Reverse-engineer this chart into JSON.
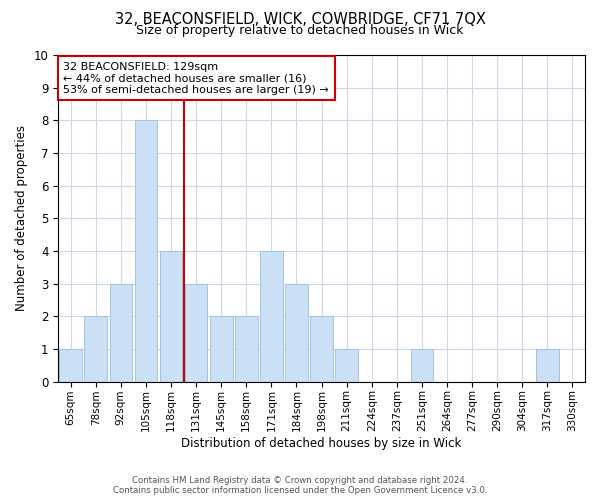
{
  "title_line1": "32, BEACONSFIELD, WICK, COWBRIDGE, CF71 7QX",
  "title_line2": "Size of property relative to detached houses in Wick",
  "xlabel": "Distribution of detached houses by size in Wick",
  "ylabel": "Number of detached properties",
  "bar_labels": [
    "65sqm",
    "78sqm",
    "92sqm",
    "105sqm",
    "118sqm",
    "131sqm",
    "145sqm",
    "158sqm",
    "171sqm",
    "184sqm",
    "198sqm",
    "211sqm",
    "224sqm",
    "237sqm",
    "251sqm",
    "264sqm",
    "277sqm",
    "290sqm",
    "304sqm",
    "317sqm",
    "330sqm"
  ],
  "bar_heights": [
    1,
    2,
    3,
    8,
    4,
    3,
    2,
    2,
    4,
    3,
    2,
    1,
    0,
    0,
    1,
    0,
    0,
    0,
    0,
    1,
    0
  ],
  "bar_color": "#cce0f5",
  "bar_edge_color": "#a0c4e8",
  "vline_x_index": 5,
  "vline_color": "#cc0000",
  "ylim": [
    0,
    10
  ],
  "yticks": [
    0,
    1,
    2,
    3,
    4,
    5,
    6,
    7,
    8,
    9,
    10
  ],
  "annotation_title": "32 BEACONSFIELD: 129sqm",
  "annotation_line1": "← 44% of detached houses are smaller (16)",
  "annotation_line2": "53% of semi-detached houses are larger (19) →",
  "annotation_box_color": "#ffffff",
  "annotation_box_edge": "#cc0000",
  "footer_line1": "Contains HM Land Registry data © Crown copyright and database right 2024.",
  "footer_line2": "Contains public sector information licensed under the Open Government Licence v3.0.",
  "background_color": "#ffffff",
  "grid_color": "#d0d8e8"
}
